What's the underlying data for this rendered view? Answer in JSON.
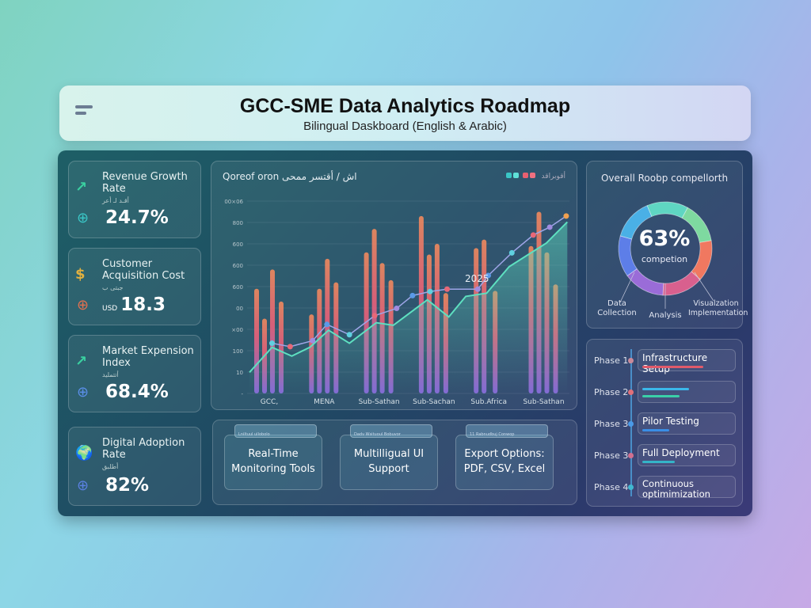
{
  "header": {
    "title": "GCC-SME Data Analytics Roadmap",
    "subtitle": "Bilingual Daskboard (English & Arabic)"
  },
  "kpis": [
    {
      "label": "Revenue Growth Rate",
      "arabic": "أقـد لـ أعر",
      "value": "24.7%",
      "unit": "",
      "icon": "trend-up-icon",
      "sub_icon": "globe-icon"
    },
    {
      "label": "Customer Acquisition Cost",
      "arabic": "جبتى ب",
      "value": "18.3",
      "unit": "USD",
      "icon": "dollar-coin-icon",
      "sub_icon": "globe-icon"
    },
    {
      "label": "Market Expension Index",
      "arabic": "أتتمليد",
      "value": "68.4%",
      "unit": "",
      "icon": "trend-up-icon",
      "sub_icon": "globe-icon"
    },
    {
      "label": "Digital Adoption Rate",
      "arabic": "أطلبق",
      "value": "82%",
      "unit": "",
      "icon": "earth-icon",
      "sub_icon": "globe-icon"
    }
  ],
  "chart_data": {
    "type": "bar",
    "title": "Qoreof oron اش / أقتسر ممحى",
    "legend_text": "أقوبراقد",
    "annotation": "2025",
    "categories": [
      "GCC,",
      "MENA",
      "Sub-Sathan",
      "Sub-Sachan",
      "Sub.Africa",
      "Sub-Sathan"
    ],
    "y_tick_labels": [
      "-",
      "10",
      "100",
      "×00",
      "00",
      "600",
      "600",
      "600",
      "800",
      "00×06"
    ],
    "ylim": [
      0,
      9
    ],
    "grid": true,
    "bars": [
      [
        4.9,
        3.5,
        5.8,
        4.3
      ],
      [
        3.7,
        4.9,
        6.3,
        5.2
      ],
      [
        6.6,
        7.7,
        6.1,
        5.3
      ],
      [
        8.3,
        6.5,
        7.0,
        4.7
      ],
      [
        6.8,
        7.2,
        4.8
      ],
      [
        6.9,
        8.5,
        6.6,
        5.1
      ]
    ],
    "dot_line": {
      "x": [
        0.05,
        0.38,
        0.79,
        1.05,
        1.46,
        1.92,
        2.32,
        2.61,
        2.93,
        3.24,
        3.8,
        3.99,
        4.42,
        4.81,
        5.11,
        5.41
      ],
      "y": [
        2.35,
        2.19,
        2.47,
        3.23,
        2.75,
        3.64,
        3.98,
        4.58,
        4.77,
        4.88,
        4.88,
        5.52,
        6.58,
        7.41,
        7.78,
        8.3
      ]
    },
    "area_line": {
      "x": [
        -0.36,
        0.05,
        0.41,
        0.74,
        1.08,
        1.46,
        1.95,
        2.26,
        2.88,
        3.27,
        3.58,
        3.96,
        4.37,
        5.05,
        5.43
      ],
      "y": [
        0.99,
        2.16,
        1.75,
        2.16,
        2.96,
        2.35,
        3.31,
        3.19,
        4.38,
        3.58,
        4.54,
        4.69,
        5.93,
        7.04,
        8.02
      ]
    },
    "colors": {
      "bar_top": "#f08a5d",
      "bar_mid": "#e8607a",
      "bar_bottom": "#8a6fe0",
      "line": "#9fa6e8",
      "area": "#5ee0c0"
    }
  },
  "features": [
    {
      "tab": "Lniltuul ullobolo",
      "label": "Real-Time Monitoring Tools"
    },
    {
      "tab": "Dadv Wsituoul Bobuvor",
      "label": "Multilligual UI Support"
    },
    {
      "tab": "11 Rabnudbuj Conwop",
      "label": "Export Options: PDF, CSV, Excel"
    }
  ],
  "donut": {
    "title": "Overall Roobp compellorth",
    "value": "63%",
    "caption": "competion",
    "completion": 63,
    "labels": [
      "Data Collection",
      "Analysis",
      "Visualzation Implementation"
    ],
    "segment_colors": [
      "#7ed9a0",
      "#f07860",
      "#d8608e",
      "#9a6cd8",
      "#5d7ee8",
      "#4ab0e6",
      "#5fd6c2"
    ]
  },
  "phases": [
    {
      "label": "Phase 1:",
      "task": "Infrastructure Setup",
      "bars": [
        {
          "color": "#e05a6a",
          "pct": 85
        }
      ],
      "dot": "#c98a9a"
    },
    {
      "label": "Phase 2",
      "task": "",
      "bars": [
        {
          "color": "#3bb8ea",
          "pct": 65
        },
        {
          "color": "#3ad0a8",
          "pct": 52
        }
      ],
      "dot": "#e0707a"
    },
    {
      "label": "Phase 3",
      "task": "Pilor Testing",
      "bars": [
        {
          "color": "#3a8ee6",
          "pct": 38
        }
      ],
      "dot": "#4a9ae8"
    },
    {
      "label": "Phase 3",
      "task": "Full Deployment",
      "bars": [
        {
          "color": "#34b4c8",
          "pct": 46
        }
      ],
      "dot": "#d07090"
    },
    {
      "label": "Phase 4",
      "task": "Continuous optimimization",
      "bars": [],
      "dot": "#40b8d0"
    }
  ]
}
